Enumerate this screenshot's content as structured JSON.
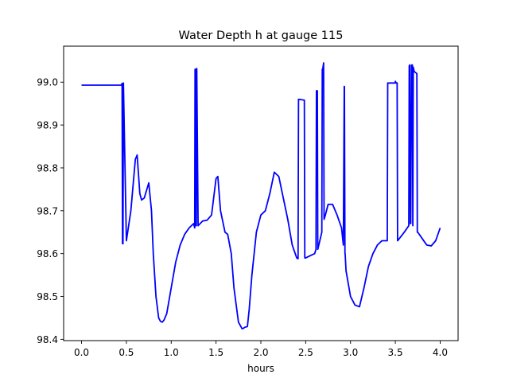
{
  "chart_data": {
    "type": "line",
    "title": "Water Depth h at gauge 115",
    "xlabel": "hours",
    "ylabel": "",
    "xlim": [
      -0.2,
      4.2
    ],
    "ylim": [
      98.397,
      99.084
    ],
    "grid": false,
    "x_ticks": [
      0.0,
      0.5,
      1.0,
      1.5,
      2.0,
      2.5,
      3.0,
      3.5,
      4.0
    ],
    "x_tick_labels": [
      "0.0",
      "0.5",
      "1.0",
      "1.5",
      "2.0",
      "2.5",
      "3.0",
      "3.5",
      "4.0"
    ],
    "y_ticks": [
      98.4,
      98.5,
      98.6,
      98.7,
      98.8,
      98.9,
      99.0
    ],
    "y_tick_labels": [
      "98.4",
      "98.5",
      "98.6",
      "98.7",
      "98.8",
      "98.9",
      "99.0"
    ],
    "series": [
      {
        "color": "#0000ff",
        "x": [
          0.0,
          0.3,
          0.44,
          0.448,
          0.452,
          0.457,
          0.462,
          0.467,
          0.5,
          0.55,
          0.6,
          0.62,
          0.65,
          0.67,
          0.7,
          0.75,
          0.78,
          0.8,
          0.83,
          0.86,
          0.88,
          0.9,
          0.92,
          0.95,
          1.0,
          1.05,
          1.1,
          1.15,
          1.2,
          1.25,
          1.262,
          1.266,
          1.27,
          1.275,
          1.28,
          1.285,
          1.3,
          1.35,
          1.4,
          1.45,
          1.5,
          1.52,
          1.55,
          1.6,
          1.63,
          1.67,
          1.7,
          1.75,
          1.79,
          1.8,
          1.82,
          1.85,
          1.87,
          1.9,
          1.95,
          2.0,
          2.05,
          2.1,
          2.15,
          2.2,
          2.25,
          2.3,
          2.35,
          2.4,
          2.415,
          2.42,
          2.485,
          2.49,
          2.5,
          2.55,
          2.6,
          2.615,
          2.62,
          2.63,
          2.635,
          2.68,
          2.685,
          2.69,
          2.7,
          2.705,
          2.72,
          2.75,
          2.8,
          2.85,
          2.9,
          2.92,
          2.93,
          2.932,
          2.938,
          2.94,
          2.95,
          3.0,
          3.05,
          3.1,
          3.15,
          3.2,
          3.25,
          3.3,
          3.35,
          3.4,
          3.41,
          3.415,
          3.5,
          3.5,
          3.51,
          3.52,
          3.525,
          3.6,
          3.65,
          3.655,
          3.66,
          3.668,
          3.672,
          3.68,
          3.69,
          3.695,
          3.7,
          3.705,
          3.71,
          3.74,
          3.745,
          3.75,
          3.8,
          3.85,
          3.9,
          3.95,
          4.0
        ],
        "y": [
          98.993,
          98.993,
          98.993,
          98.995,
          98.997,
          98.623,
          98.623,
          98.998,
          98.63,
          98.7,
          98.82,
          98.83,
          98.74,
          98.725,
          98.73,
          98.765,
          98.7,
          98.6,
          98.5,
          98.45,
          98.442,
          98.44,
          98.445,
          98.46,
          98.52,
          98.58,
          98.62,
          98.645,
          98.66,
          98.67,
          98.66,
          99.03,
          99.03,
          98.665,
          98.665,
          99.032,
          98.665,
          98.676,
          98.678,
          98.69,
          98.775,
          98.78,
          98.7,
          98.65,
          98.645,
          98.6,
          98.52,
          98.44,
          98.425,
          98.425,
          98.428,
          98.43,
          98.47,
          98.55,
          98.65,
          98.69,
          98.7,
          98.74,
          98.79,
          98.78,
          98.73,
          98.68,
          98.62,
          98.59,
          98.588,
          98.96,
          98.958,
          98.59,
          98.59,
          98.595,
          98.6,
          98.61,
          98.98,
          98.98,
          98.61,
          98.65,
          99.03,
          99.03,
          99.045,
          98.68,
          98.69,
          98.715,
          98.715,
          98.69,
          98.66,
          98.62,
          98.99,
          98.99,
          98.6,
          98.6,
          98.56,
          98.5,
          98.48,
          98.476,
          98.52,
          98.57,
          98.6,
          98.62,
          98.63,
          98.63,
          98.63,
          98.998,
          98.998,
          99.002,
          98.998,
          98.998,
          98.63,
          98.65,
          98.665,
          99.038,
          99.04,
          98.67,
          98.67,
          99.04,
          99.04,
          98.665,
          99.035,
          99.03,
          99.025,
          99.02,
          98.65,
          98.65,
          98.635,
          98.62,
          98.618,
          98.63,
          98.66
        ]
      }
    ]
  }
}
